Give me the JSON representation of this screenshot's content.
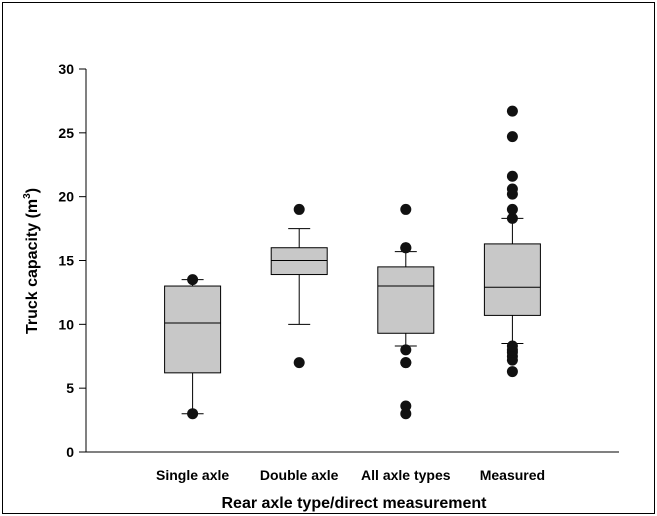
{
  "chart_data": {
    "type": "box",
    "title": "",
    "xlabel": "Rear axle type/direct measurement",
    "ylabel": "Truck capacity (m",
    "ylabel_sup": "3",
    "ylabel_suffix": ")",
    "ylim": [
      0,
      30
    ],
    "yticks": [
      0,
      5,
      10,
      15,
      20,
      25,
      30
    ],
    "grid": false,
    "legend": "none",
    "colors": {
      "box_fill": "#c8c8c8",
      "stroke": "#000000",
      "outlier": "#111111"
    },
    "categories": [
      "Single axle",
      "Double axle",
      "All axle types",
      "Measured"
    ],
    "boxes": [
      {
        "category": "Single axle",
        "whisker_low": 3.0,
        "q1": 6.2,
        "median": 10.1,
        "q3": 13.0,
        "whisker_high": 13.5,
        "outliers": [
          3.0,
          13.5
        ]
      },
      {
        "category": "Double axle",
        "whisker_low": 10.0,
        "q1": 13.9,
        "median": 15.0,
        "q3": 16.0,
        "whisker_high": 17.5,
        "outliers": [
          7.0,
          19.0
        ]
      },
      {
        "category": "All axle types",
        "whisker_low": 8.3,
        "q1": 9.3,
        "median": 13.0,
        "q3": 14.5,
        "whisker_high": 15.7,
        "outliers": [
          3.0,
          3.6,
          7.0,
          7.0,
          8.0,
          16.0,
          16.0,
          19.0
        ]
      },
      {
        "category": "Measured",
        "whisker_low": 8.5,
        "q1": 10.7,
        "median": 12.9,
        "q3": 16.3,
        "whisker_high": 18.3,
        "outliers": [
          6.3,
          7.2,
          7.5,
          7.8,
          8.0,
          8.3,
          18.3,
          19.0,
          20.2,
          20.6,
          21.6,
          24.7,
          26.7
        ]
      }
    ]
  }
}
